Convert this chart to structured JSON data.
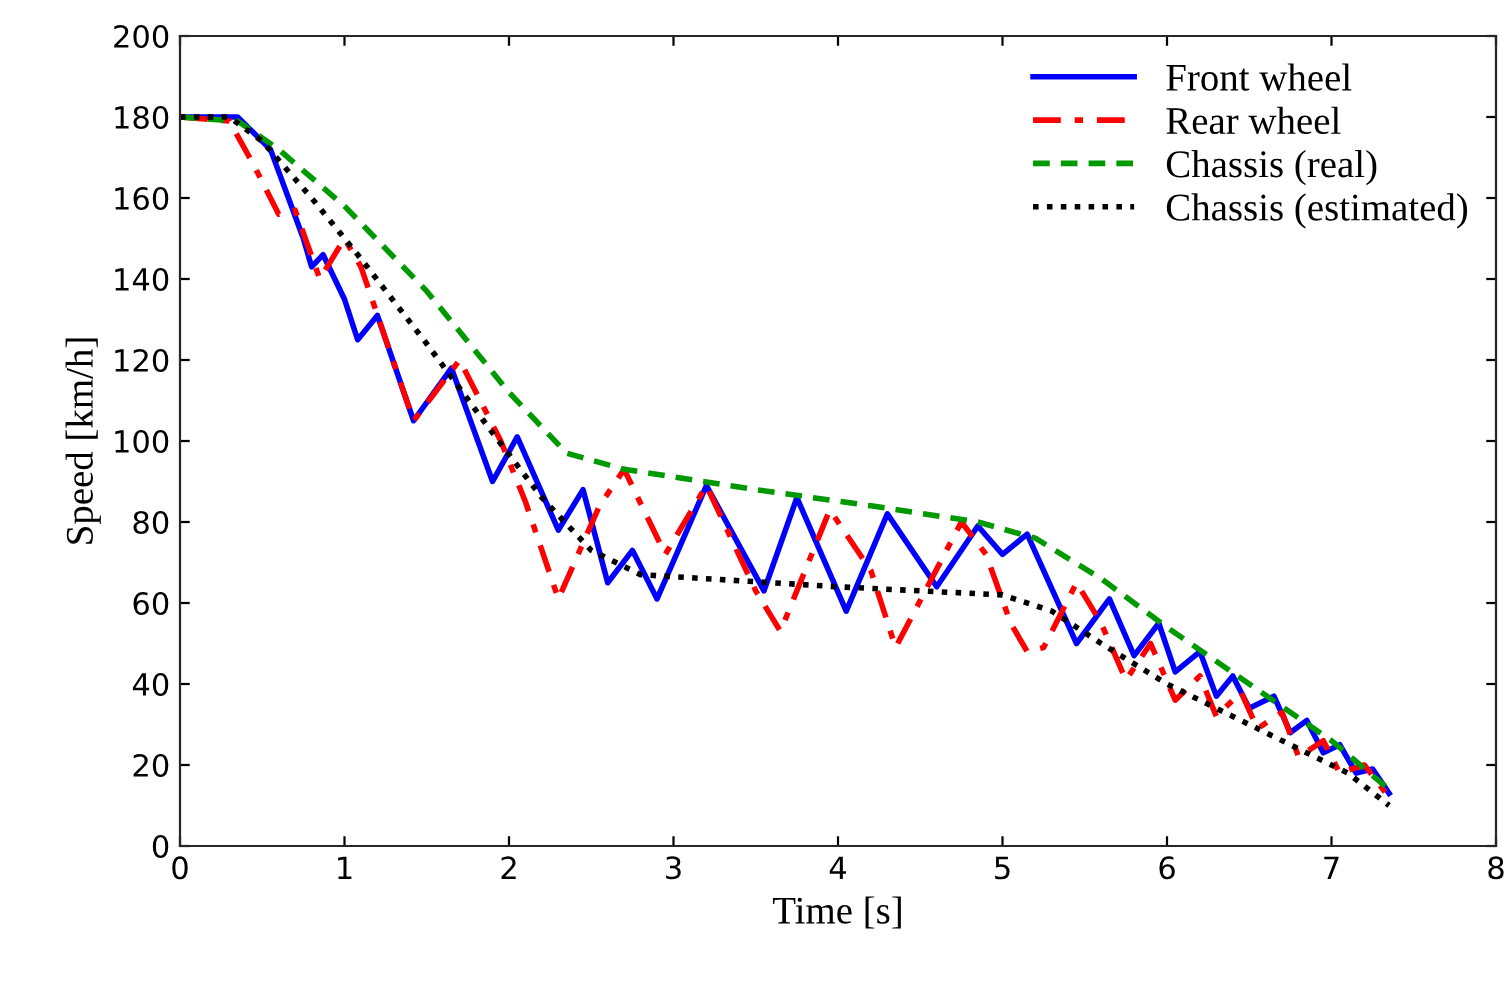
{
  "chart_data": {
    "type": "line",
    "xlabel": "Time [s]",
    "ylabel": "Speed [km/h]",
    "xlim": [
      0,
      8
    ],
    "xticks": [
      0,
      1,
      2,
      3,
      4,
      5,
      6,
      7,
      8
    ],
    "ylim": [
      0,
      200
    ],
    "yticks": [
      0,
      20,
      40,
      60,
      80,
      100,
      120,
      140,
      160,
      180,
      200
    ],
    "grid": false,
    "legend": "top right",
    "marker": "none",
    "series": [
      {
        "name": "Front wheel",
        "color": "#0000ff",
        "line_style": "solid",
        "x": [
          0,
          0.35,
          0.55,
          0.75,
          0.8,
          0.87,
          1.0,
          1.08,
          1.2,
          1.42,
          1.65,
          1.9,
          2.05,
          2.3,
          2.45,
          2.6,
          2.75,
          2.9,
          3.2,
          3.55,
          3.75,
          4.05,
          4.3,
          4.6,
          4.85,
          5.0,
          5.15,
          5.45,
          5.65,
          5.8,
          5.95,
          6.05,
          6.2,
          6.3,
          6.4,
          6.5,
          6.65,
          6.75,
          6.85,
          6.95,
          7.05,
          7.15,
          7.25,
          7.35
        ],
        "values": [
          180,
          180,
          172,
          150,
          143,
          146,
          135,
          125,
          131,
          105,
          118,
          90,
          101,
          78,
          88,
          65,
          73,
          61,
          89,
          63,
          86,
          58,
          82,
          64,
          79,
          72,
          77,
          50,
          61,
          47,
          55,
          43,
          48,
          37,
          42,
          34,
          37,
          28,
          31,
          23,
          25,
          18,
          19,
          13
        ]
      },
      {
        "name": "Rear wheel",
        "color": "#ff0000",
        "line_style": "dashdot",
        "x": [
          0,
          0.3,
          0.45,
          0.6,
          0.7,
          0.85,
          1.0,
          1.1,
          1.42,
          1.7,
          1.95,
          2.1,
          2.3,
          2.55,
          2.7,
          2.95,
          3.2,
          3.5,
          3.65,
          3.95,
          4.2,
          4.35,
          4.75,
          4.9,
          5.05,
          5.15,
          5.25,
          5.45,
          5.6,
          5.75,
          5.9,
          6.05,
          6.2,
          6.3,
          6.45,
          6.55,
          6.7,
          6.8,
          6.95,
          7.05,
          7.2,
          7.35
        ],
        "values": [
          180,
          179,
          168,
          156,
          157,
          140,
          150,
          143,
          105,
          120,
          100,
          85,
          61,
          84,
          93,
          72,
          89,
          63,
          53,
          83,
          68,
          49,
          80,
          72,
          55,
          48,
          49,
          65,
          55,
          41,
          50,
          36,
          42,
          32,
          38,
          29,
          33,
          22,
          26,
          18,
          20,
          12
        ]
      },
      {
        "name": "Chassis (real)",
        "color": "#009900",
        "line_style": "dashed",
        "x": [
          0,
          0.35,
          0.6,
          1.0,
          1.5,
          2.0,
          2.35,
          2.7,
          3.5,
          4.2,
          4.85,
          5.2,
          5.6,
          6.0,
          6.5,
          7.0,
          7.35
        ],
        "values": [
          180,
          179,
          172,
          158,
          137,
          112,
          97,
          93,
          88,
          84,
          80,
          76,
          66,
          54,
          40,
          26,
          14
        ]
      },
      {
        "name": "Chassis (estimated)",
        "color": "#000000",
        "line_style": "dotted",
        "x": [
          0,
          0.3,
          0.5,
          0.8,
          1.1,
          1.5,
          1.9,
          2.2,
          2.5,
          2.8,
          3.2,
          3.6,
          4.0,
          4.5,
          5.0,
          5.3,
          5.6,
          6.0,
          6.4,
          6.8,
          7.1,
          7.35
        ],
        "values": [
          180,
          180,
          174,
          160,
          145,
          124,
          102,
          86,
          73,
          67,
          66,
          65,
          64,
          63,
          62,
          58,
          50,
          40,
          32,
          24,
          18,
          10
        ]
      }
    ]
  }
}
